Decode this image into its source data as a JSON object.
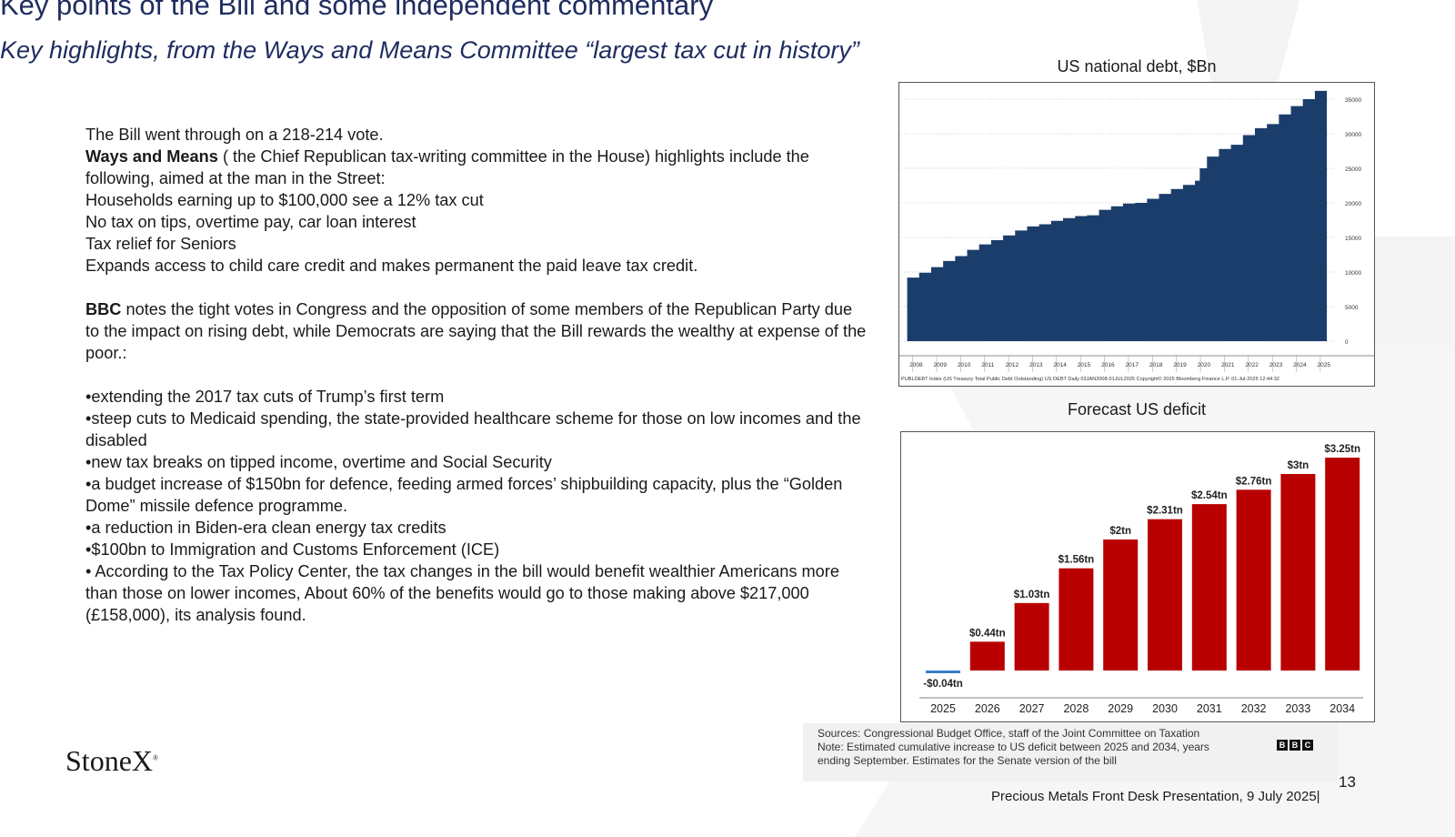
{
  "header": {
    "title": "Key points of the Bill and some independent commentary",
    "subtitle": "Key highlights, from the Ways and Means Committee “largest tax cut in history”"
  },
  "body": {
    "p1": "The Bill went through on a 218-214 vote.",
    "wm_bold": "Ways and Means",
    "wm_rest": " ( the Chief Republican tax-writing committee in the House) highlights include  the following, aimed at the man in the Street:",
    "wm_items": [
      "Households earning up to $100,000 see a 12% tax cut",
      "No tax on tips, overtime pay, car loan interest",
      "Tax relief for Seniors",
      "Expands access to child care credit and makes permanent the paid leave tax credit."
    ],
    "bbc_bold": "BBC",
    "bbc_rest": " notes the tight votes in Congress and the opposition of some  members of the Republican Party due to the impact on rising debt, while Democrats are saying that the Bill rewards the wealthy at expense of the poor.:",
    "bullets": [
      "•extending the 2017 tax cuts of Trump’s first term",
      "•steep cuts to Medicaid spending, the state-provided healthcare scheme for those on low incomes and the disabled",
      "•new tax breaks on tipped income, overtime and Social Security",
      "•a budget increase of $150bn for defence, feeding armed forces’ shipbuilding capacity, plus the “Golden Dome” missile defence programme.",
      "•a reduction in Biden-era clean energy tax credits",
      "•$100bn to Immigration and Customs Enforcement (ICE)",
      "• According to the Tax Policy Center, the tax changes in the bill would benefit wealthier Americans more than those on lower incomes, About 60% of the benefits would go to those making above $217,000 (£158,000), its analysis found."
    ]
  },
  "chart_data": [
    {
      "type": "area",
      "title": "US national debt, $Bn",
      "ylim": [
        0,
        35000
      ],
      "yticks": [
        "35000",
        "30000",
        "25000",
        "20000",
        "15000",
        "10000",
        "5000",
        "0"
      ],
      "x_labels": [
        "2008",
        "2009",
        "2010",
        "2011",
        "2012",
        "2013",
        "2014",
        "2015",
        "2016",
        "2017",
        "2018",
        "2019",
        "2020",
        "2021",
        "2022",
        "2023",
        "2024",
        "2025"
      ],
      "x": [
        2008.0,
        2008.5,
        2009.0,
        2009.5,
        2010.0,
        2010.5,
        2011.0,
        2011.5,
        2012.0,
        2012.5,
        2013.0,
        2013.5,
        2014.0,
        2014.5,
        2015.0,
        2015.5,
        2016.0,
        2016.5,
        2017.0,
        2017.5,
        2018.0,
        2018.5,
        2019.0,
        2019.5,
        2020.0,
        2020.2,
        2020.5,
        2021.0,
        2021.5,
        2022.0,
        2022.5,
        2023.0,
        2023.5,
        2024.0,
        2024.5,
        2025.0,
        2025.5
      ],
      "values": [
        9200,
        9900,
        10700,
        11600,
        12300,
        13200,
        14000,
        14600,
        15300,
        16000,
        16600,
        16900,
        17400,
        17800,
        18100,
        18200,
        19000,
        19500,
        19900,
        20000,
        20600,
        21300,
        22000,
        22600,
        23200,
        25000,
        26700,
        27800,
        28400,
        29800,
        30800,
        31400,
        32800,
        34000,
        35000,
        36200,
        36200
      ],
      "color": "#1b3d6b",
      "source_line": "PUBLDEBT Index (US Treasury Total Public Debt Outstanding) US DEBT  Daily 03JAN2008-01JUL2025 Copyright© 2025 Bloomberg Finance L.P.  01-Jul-2025 12:44:32"
    },
    {
      "type": "bar",
      "title": "Forecast US deficit",
      "categories": [
        "2025",
        "2026",
        "2027",
        "2028",
        "2029",
        "2030",
        "2031",
        "2032",
        "2033",
        "2034"
      ],
      "values": [
        -0.04,
        0.44,
        1.03,
        1.56,
        2.0,
        2.31,
        2.54,
        2.76,
        3.0,
        3.25
      ],
      "labels": [
        "-$0.04tn",
        "$0.44tn",
        "$1.03tn",
        "$1.56tn",
        "$2tn",
        "$2.31tn",
        "$2.54tn",
        "$2.76tn",
        "$3tn",
        "$3.25tn"
      ],
      "ylim": [
        0,
        3.25
      ],
      "color": "#b80000",
      "negative_color": "#3a7bc8"
    }
  ],
  "sources": {
    "text": "Sources: Congressional Budget Office, staff of the Joint Committee on Taxation\nNote: Estimated cumulative increase to US deficit between 2025 and 2034, years ending September. Estimates for the Senate version of the bill",
    "line1": "Sources: Congressional Budget Office, staff of the Joint Committee on Taxation",
    "line2": "Note: Estimated cumulative increase to US deficit between 2025 and 2034, years ending September. Estimates for the Senate version of the bill",
    "bbc_letters": [
      "B",
      "B",
      "C"
    ]
  },
  "footer": {
    "logo": "StoneX",
    "logo_mark": "®",
    "page": "13",
    "text": "Precious Metals Front Desk Presentation, 9 July 2025|"
  },
  "colors": {
    "title": "#1e2c5e",
    "watermark": "#f5f5f5"
  }
}
